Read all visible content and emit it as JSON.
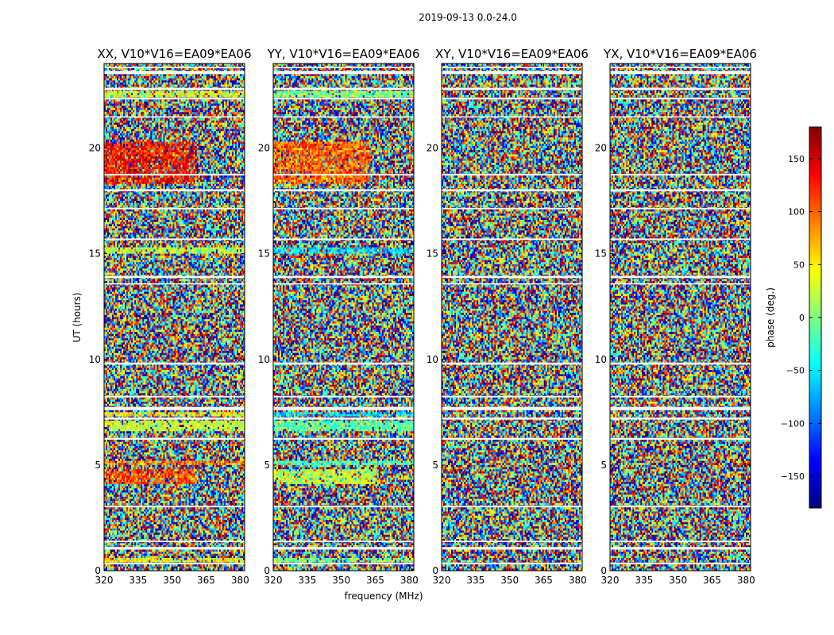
{
  "chart_data": {
    "type": "heatmap",
    "suptitle": "2019-09-13 0.0-24.0",
    "xlabel": "frequency (MHz)",
    "ylabel": "UT (hours)",
    "xlim": [
      320,
      382
    ],
    "ylim": [
      0,
      24
    ],
    "x_ticks": [
      320,
      335,
      350,
      365,
      380
    ],
    "y_ticks": [
      0,
      5,
      10,
      15,
      20
    ],
    "colorbar": {
      "label": "phase (deg.)",
      "range": [
        -180,
        180
      ],
      "ticks": [
        150,
        100,
        50,
        0,
        -50,
        -100,
        -150
      ],
      "tick_labels": [
        "150",
        "100",
        "50",
        "0",
        "−50",
        "−100",
        "−150"
      ],
      "colormap": "jet",
      "colors": [
        "#00007f",
        "#0000ff",
        "#007fff",
        "#00ffff",
        "#7fff7f",
        "#ffff00",
        "#ff7f00",
        "#ff0000",
        "#7f0000"
      ]
    },
    "flagged_ut_bands": [
      [
        0.3,
        0.38
      ],
      [
        1.0,
        1.12
      ],
      [
        1.35,
        1.42
      ],
      [
        3.0,
        3.07
      ],
      [
        6.2,
        6.28
      ],
      [
        7.15,
        7.25
      ],
      [
        7.6,
        7.75
      ],
      [
        8.2,
        8.27
      ],
      [
        9.75,
        9.85
      ],
      [
        13.55,
        13.6
      ],
      [
        13.85,
        13.95
      ],
      [
        15.65,
        15.72
      ],
      [
        17.1,
        17.17
      ],
      [
        17.95,
        18.05
      ],
      [
        18.7,
        18.78
      ],
      [
        21.45,
        21.5
      ],
      [
        22.3,
        22.38
      ],
      [
        22.75,
        22.85
      ],
      [
        23.5,
        23.65
      ],
      [
        23.78,
        23.85
      ]
    ],
    "panels": [
      {
        "title": "XX, V10*V16=EA09*EA06",
        "coherent_regions": [
          {
            "ut": [
              0.38,
              0.6
            ],
            "phase": 40
          },
          {
            "ut": [
              4.1,
              4.8
            ],
            "phase": 110,
            "freq_max": 360
          },
          {
            "ut": [
              4.95,
              5.2
            ],
            "phase": 90
          },
          {
            "ut": [
              6.6,
              7.1
            ],
            "phase": 30
          },
          {
            "ut": [
              7.3,
              7.55
            ],
            "phase": 45
          },
          {
            "ut": [
              15.05,
              15.3
            ],
            "phase": 20
          },
          {
            "ut": [
              18.3,
              20.3
            ],
            "phase": 130,
            "freq_max": 360
          },
          {
            "ut": [
              22.4,
              22.7
            ],
            "phase": 35
          }
        ]
      },
      {
        "title": "YY, V10*V16=EA09*EA06",
        "coherent_regions": [
          {
            "ut": [
              0.38,
              0.6
            ],
            "phase": 0
          },
          {
            "ut": [
              4.1,
              4.8
            ],
            "phase": 20,
            "freq_max": 365
          },
          {
            "ut": [
              4.95,
              5.2
            ],
            "phase": -20
          },
          {
            "ut": [
              6.6,
              7.1
            ],
            "phase": -10
          },
          {
            "ut": [
              7.3,
              7.55
            ],
            "phase": -60
          },
          {
            "ut": [
              15.05,
              15.3
            ],
            "phase": -60
          },
          {
            "ut": [
              18.3,
              20.3
            ],
            "phase": 100,
            "freq_max": 362
          },
          {
            "ut": [
              22.4,
              22.7
            ],
            "phase": 0
          }
        ]
      },
      {
        "title": "XY, V10*V16=EA09*EA06",
        "coherent_regions": []
      },
      {
        "title": "YX, V10*V16=EA09*EA06",
        "coherent_regions": []
      }
    ]
  }
}
